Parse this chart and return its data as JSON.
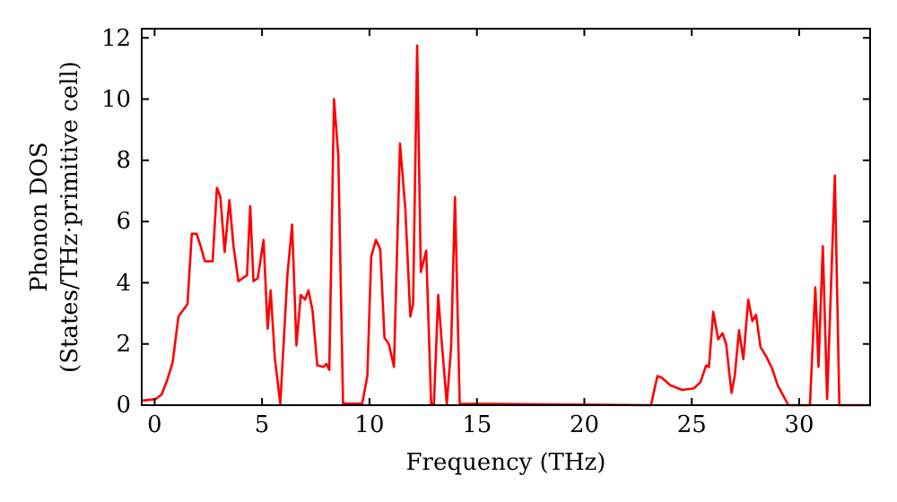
{
  "chart_data": {
    "type": "line",
    "xlabel": "Frequency (THz)",
    "ylabel": "Phonon DOS\n(States/THz·primitive cell)",
    "xlim": [
      -0.6,
      33.3
    ],
    "ylim": [
      0,
      12.3
    ],
    "xticks": [
      0,
      5,
      10,
      15,
      20,
      25,
      30
    ],
    "yticks": [
      0,
      2,
      4,
      6,
      8,
      10,
      12
    ],
    "grid": false,
    "series": [
      {
        "color": "#ff0000",
        "x": [
          -0.55,
          0.05,
          0.33,
          0.6,
          0.84,
          1.11,
          1.53,
          1.73,
          1.95,
          2.14,
          2.34,
          2.7,
          2.9,
          3.06,
          3.26,
          3.48,
          3.67,
          3.9,
          4.3,
          4.45,
          4.6,
          4.8,
          5.07,
          5.26,
          5.4,
          5.6,
          5.85,
          6.18,
          6.4,
          6.6,
          6.8,
          7.0,
          7.16,
          7.35,
          7.57,
          7.85,
          8.0,
          8.13,
          8.35,
          8.55,
          8.77,
          9.66,
          9.9,
          10.08,
          10.3,
          10.5,
          10.7,
          10.9,
          11.14,
          11.42,
          11.67,
          11.9,
          12.03,
          12.22,
          12.39,
          12.64,
          12.87,
          13.0,
          13.2,
          13.37,
          13.6,
          13.8,
          13.98,
          14.2,
          23.1,
          23.4,
          23.6,
          24.0,
          24.56,
          25.1,
          25.4,
          25.67,
          25.8,
          26.0,
          26.23,
          26.43,
          26.6,
          26.85,
          27.0,
          27.2,
          27.4,
          27.63,
          27.82,
          27.99,
          28.2,
          28.46,
          28.74,
          29.0,
          29.5,
          30.5,
          30.75,
          30.9,
          31.1,
          31.3,
          31.66,
          31.87,
          33.3
        ],
        "values": [
          0.15,
          0.2,
          0.35,
          0.85,
          1.4,
          2.9,
          3.3,
          5.6,
          5.6,
          5.2,
          4.7,
          4.7,
          7.1,
          6.8,
          5.0,
          6.7,
          5.2,
          4.05,
          4.25,
          6.5,
          4.05,
          4.15,
          5.4,
          2.5,
          3.75,
          1.5,
          0.05,
          4.25,
          5.9,
          1.95,
          3.6,
          3.45,
          3.75,
          3.1,
          1.3,
          1.25,
          1.35,
          1.15,
          10.0,
          8.15,
          0.05,
          0.05,
          0.95,
          4.85,
          5.4,
          5.1,
          2.2,
          2.0,
          1.25,
          8.55,
          6.4,
          2.9,
          3.3,
          11.75,
          4.35,
          5.05,
          0.05,
          0.05,
          3.6,
          2.0,
          0.05,
          1.9,
          6.8,
          0.05,
          0,
          0.95,
          0.9,
          0.65,
          0.5,
          0.55,
          0.75,
          1.3,
          1.25,
          3.05,
          2.15,
          2.35,
          2.0,
          0.4,
          0.95,
          2.45,
          1.5,
          3.45,
          2.75,
          2.95,
          1.9,
          1.6,
          1.2,
          0.65,
          0,
          0,
          3.85,
          1.25,
          5.2,
          0.2,
          7.5,
          0,
          0
        ]
      }
    ]
  }
}
